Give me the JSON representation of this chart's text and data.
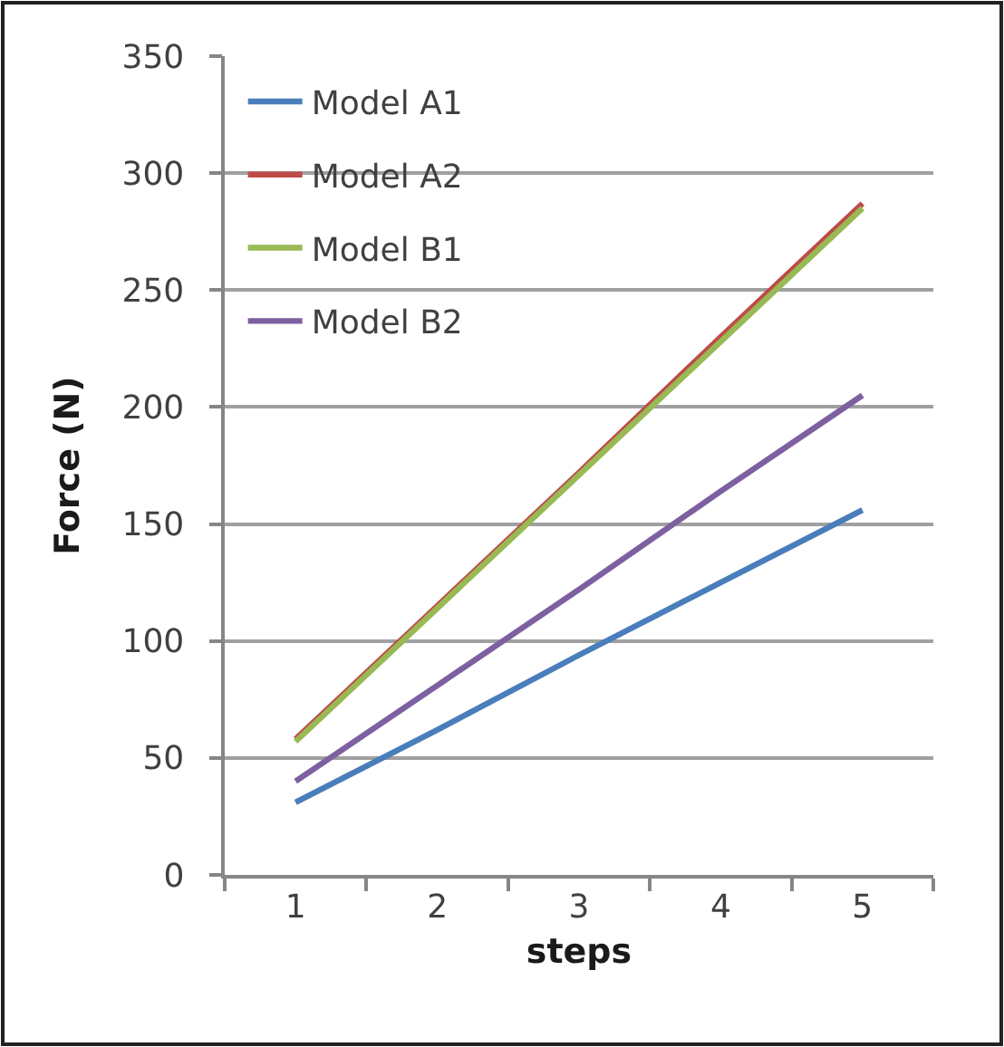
{
  "chart_data": {
    "type": "line",
    "xlabel": "steps",
    "ylabel": "Force (N)",
    "categories": [
      "1",
      "2",
      "3",
      "4",
      "5"
    ],
    "series": [
      {
        "name": "Model A1",
        "color": "#4a7ebb",
        "values": [
          31,
          62,
          94,
          125,
          156
        ]
      },
      {
        "name": "Model A2",
        "color": "#be4b48",
        "values": [
          58,
          115,
          172,
          230,
          287
        ]
      },
      {
        "name": "Model B1",
        "color": "#98b954",
        "values": [
          57,
          114,
          171,
          228,
          285
        ]
      },
      {
        "name": "Model B2",
        "color": "#7d60a0",
        "values": [
          40,
          81,
          122,
          164,
          205
        ]
      }
    ],
    "ylim": [
      0,
      350
    ],
    "yticks": [
      0,
      50,
      100,
      150,
      200,
      250,
      300,
      350
    ],
    "grid": "y",
    "legend": "top left",
    "marker": "none",
    "line_style": "solid"
  }
}
